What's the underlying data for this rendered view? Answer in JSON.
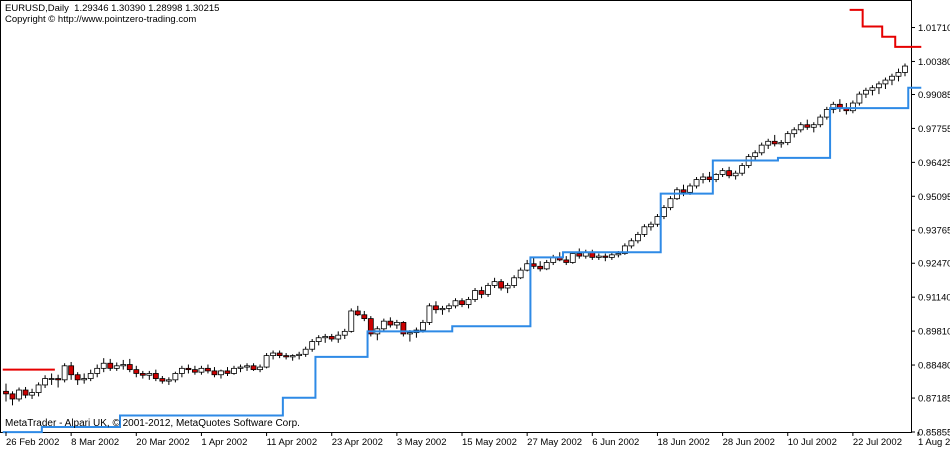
{
  "header": {
    "symbol": "EURUSD,Daily",
    "ohlc": "1.29346 1.30390 1.28998 1.30215",
    "copyright": "Copyright © http://www.pointzero-trading.com"
  },
  "footer": "MetaTrader - Alpari UK, © 2001-2012, MetaQuotes Software Corp.",
  "colors": {
    "bull_body": "#ffffff",
    "bear_body": "#cc0000",
    "candle_outline": "#000000",
    "support_line": "#2e8ae6",
    "resistance_line": "#e60000",
    "axis": "#000000"
  },
  "chart_data": {
    "type": "candlestick",
    "ylim": [
      0.85855,
      1.0275
    ],
    "y_ticks": [
      "1.01710",
      "1.00380",
      "0.99085",
      "0.97755",
      "0.96425",
      "0.95095",
      "0.93765",
      "0.92470",
      "0.91140",
      "0.89810",
      "0.88480",
      "0.87185",
      "0.85855"
    ],
    "x_ticks": [
      {
        "label": "26 Feb 2002",
        "index": 0
      },
      {
        "label": "8 Mar 2002",
        "index": 10
      },
      {
        "label": "20 Mar 2002",
        "index": 20
      },
      {
        "label": "1 Apr 2002",
        "index": 30
      },
      {
        "label": "11 Apr 2002",
        "index": 40
      },
      {
        "label": "23 Apr 2002",
        "index": 50
      },
      {
        "label": "3 May 2002",
        "index": 60
      },
      {
        "label": "15 May 2002",
        "index": 70
      },
      {
        "label": "27 May 2002",
        "index": 80
      },
      {
        "label": "6 Jun 2002",
        "index": 90
      },
      {
        "label": "18 Jun 2002",
        "index": 100
      },
      {
        "label": "28 Jun 2002",
        "index": 110
      },
      {
        "label": "10 Jul 2002",
        "index": 120
      },
      {
        "label": "22 Jul 2002",
        "index": 130
      },
      {
        "label": "1 Aug 2002",
        "index": 140
      }
    ],
    "candles": [
      [
        0.8745,
        0.8775,
        0.8705,
        0.8735
      ],
      [
        0.8735,
        0.8745,
        0.869,
        0.8715
      ],
      [
        0.8715,
        0.876,
        0.8705,
        0.875
      ],
      [
        0.875,
        0.8762,
        0.8718,
        0.873
      ],
      [
        0.873,
        0.8755,
        0.8715,
        0.874
      ],
      [
        0.874,
        0.878,
        0.8725,
        0.877
      ],
      [
        0.877,
        0.8808,
        0.8758,
        0.8795
      ],
      [
        0.8795,
        0.8815,
        0.877,
        0.8795
      ],
      [
        0.8795,
        0.881,
        0.876,
        0.879
      ],
      [
        0.879,
        0.8855,
        0.878,
        0.8845
      ],
      [
        0.8845,
        0.886,
        0.879,
        0.881
      ],
      [
        0.881,
        0.882,
        0.877,
        0.879
      ],
      [
        0.879,
        0.8815,
        0.8775,
        0.8795
      ],
      [
        0.8795,
        0.883,
        0.8785,
        0.8815
      ],
      [
        0.8815,
        0.885,
        0.88,
        0.8835
      ],
      [
        0.8835,
        0.8875,
        0.882,
        0.8855
      ],
      [
        0.8855,
        0.8872,
        0.8825,
        0.8835
      ],
      [
        0.8835,
        0.8858,
        0.8825,
        0.8845
      ],
      [
        0.8845,
        0.8868,
        0.883,
        0.885
      ],
      [
        0.885,
        0.8872,
        0.882,
        0.883
      ],
      [
        0.883,
        0.8845,
        0.88,
        0.8815
      ],
      [
        0.8815,
        0.8825,
        0.8795,
        0.8808
      ],
      [
        0.8808,
        0.8825,
        0.879,
        0.8815
      ],
      [
        0.8815,
        0.883,
        0.8785,
        0.8795
      ],
      [
        0.8795,
        0.8805,
        0.8775,
        0.8785
      ],
      [
        0.8785,
        0.88,
        0.877,
        0.879
      ],
      [
        0.879,
        0.8822,
        0.878,
        0.8815
      ],
      [
        0.8815,
        0.8845,
        0.88,
        0.8835
      ],
      [
        0.8835,
        0.885,
        0.8815,
        0.883
      ],
      [
        0.883,
        0.8845,
        0.881,
        0.882
      ],
      [
        0.882,
        0.8845,
        0.881,
        0.8835
      ],
      [
        0.8835,
        0.885,
        0.8815,
        0.8825
      ],
      [
        0.8825,
        0.884,
        0.88,
        0.881
      ],
      [
        0.881,
        0.883,
        0.8795,
        0.8825
      ],
      [
        0.8825,
        0.884,
        0.8805,
        0.8815
      ],
      [
        0.8815,
        0.8845,
        0.881,
        0.8835
      ],
      [
        0.8835,
        0.885,
        0.882,
        0.884
      ],
      [
        0.884,
        0.8855,
        0.8825,
        0.8845
      ],
      [
        0.8845,
        0.8855,
        0.8825,
        0.883
      ],
      [
        0.883,
        0.885,
        0.882,
        0.884
      ],
      [
        0.884,
        0.8895,
        0.8835,
        0.8885
      ],
      [
        0.8885,
        0.8905,
        0.887,
        0.8895
      ],
      [
        0.8895,
        0.8905,
        0.8875,
        0.8885
      ],
      [
        0.8885,
        0.8895,
        0.887,
        0.888
      ],
      [
        0.888,
        0.889,
        0.8865,
        0.8885
      ],
      [
        0.8885,
        0.89,
        0.887,
        0.889
      ],
      [
        0.889,
        0.892,
        0.888,
        0.891
      ],
      [
        0.891,
        0.895,
        0.89,
        0.894
      ],
      [
        0.894,
        0.8965,
        0.8925,
        0.8955
      ],
      [
        0.8955,
        0.897,
        0.8935,
        0.896
      ],
      [
        0.896,
        0.897,
        0.894,
        0.895
      ],
      [
        0.895,
        0.898,
        0.8935,
        0.8965
      ],
      [
        0.8965,
        0.899,
        0.895,
        0.898
      ],
      [
        0.898,
        0.907,
        0.8975,
        0.906
      ],
      [
        0.906,
        0.908,
        0.904,
        0.9045
      ],
      [
        0.9045,
        0.906,
        0.902,
        0.903
      ],
      [
        0.903,
        0.904,
        0.896,
        0.897
      ],
      [
        0.897,
        0.9,
        0.8945,
        0.899
      ],
      [
        0.899,
        0.903,
        0.898,
        0.902
      ],
      [
        0.902,
        0.9035,
        0.8995,
        0.9005
      ],
      [
        0.9005,
        0.9025,
        0.899,
        0.9015
      ],
      [
        0.9015,
        0.902,
        0.896,
        0.897
      ],
      [
        0.897,
        0.8985,
        0.894,
        0.8975
      ],
      [
        0.8975,
        0.8995,
        0.8955,
        0.8985
      ],
      [
        0.8985,
        0.9025,
        0.8975,
        0.9015
      ],
      [
        0.9015,
        0.909,
        0.9005,
        0.908
      ],
      [
        0.908,
        0.9098,
        0.905,
        0.9065
      ],
      [
        0.9065,
        0.908,
        0.9045,
        0.907
      ],
      [
        0.907,
        0.909,
        0.9055,
        0.908
      ],
      [
        0.908,
        0.911,
        0.907,
        0.91
      ],
      [
        0.91,
        0.911,
        0.9075,
        0.9085
      ],
      [
        0.9085,
        0.9115,
        0.907,
        0.9105
      ],
      [
        0.9105,
        0.915,
        0.9095,
        0.914
      ],
      [
        0.914,
        0.9155,
        0.911,
        0.9125
      ],
      [
        0.9125,
        0.917,
        0.9115,
        0.916
      ],
      [
        0.916,
        0.919,
        0.915,
        0.9175
      ],
      [
        0.9175,
        0.9185,
        0.914,
        0.915
      ],
      [
        0.915,
        0.917,
        0.913,
        0.916
      ],
      [
        0.916,
        0.92,
        0.915,
        0.919
      ],
      [
        0.919,
        0.923,
        0.9185,
        0.922
      ],
      [
        0.922,
        0.926,
        0.9215,
        0.9245
      ],
      [
        0.9245,
        0.9268,
        0.9225,
        0.9235
      ],
      [
        0.9235,
        0.9255,
        0.9215,
        0.9225
      ],
      [
        0.9225,
        0.926,
        0.922,
        0.925
      ],
      [
        0.925,
        0.928,
        0.924,
        0.927
      ],
      [
        0.927,
        0.929,
        0.9255,
        0.926
      ],
      [
        0.926,
        0.9275,
        0.924,
        0.925
      ],
      [
        0.925,
        0.929,
        0.9245,
        0.9285
      ],
      [
        0.9285,
        0.9305,
        0.9265,
        0.9275
      ],
      [
        0.9275,
        0.93,
        0.9265,
        0.929
      ],
      [
        0.929,
        0.93,
        0.926,
        0.927
      ],
      [
        0.927,
        0.9285,
        0.926,
        0.9275
      ],
      [
        0.9275,
        0.9285,
        0.9255,
        0.927
      ],
      [
        0.927,
        0.929,
        0.926,
        0.928
      ],
      [
        0.928,
        0.9295,
        0.927,
        0.9285
      ],
      [
        0.9285,
        0.9325,
        0.928,
        0.9315
      ],
      [
        0.9315,
        0.9345,
        0.9305,
        0.9335
      ],
      [
        0.9335,
        0.937,
        0.9325,
        0.936
      ],
      [
        0.936,
        0.94,
        0.935,
        0.939
      ],
      [
        0.939,
        0.941,
        0.9375,
        0.94
      ],
      [
        0.94,
        0.944,
        0.939,
        0.943
      ],
      [
        0.943,
        0.9475,
        0.942,
        0.9465
      ],
      [
        0.9465,
        0.951,
        0.9455,
        0.95
      ],
      [
        0.95,
        0.9545,
        0.9495,
        0.9535
      ],
      [
        0.9535,
        0.9555,
        0.951,
        0.9525
      ],
      [
        0.9525,
        0.956,
        0.9515,
        0.955
      ],
      [
        0.955,
        0.9585,
        0.954,
        0.9575
      ],
      [
        0.9575,
        0.96,
        0.956,
        0.9585
      ],
      [
        0.9585,
        0.9605,
        0.9565,
        0.9575
      ],
      [
        0.9575,
        0.96,
        0.9565,
        0.9595
      ],
      [
        0.9595,
        0.962,
        0.9585,
        0.961
      ],
      [
        0.961,
        0.9625,
        0.958,
        0.959
      ],
      [
        0.959,
        0.961,
        0.9575,
        0.96
      ],
      [
        0.96,
        0.964,
        0.959,
        0.963
      ],
      [
        0.963,
        0.9675,
        0.962,
        0.9665
      ],
      [
        0.9665,
        0.969,
        0.965,
        0.968
      ],
      [
        0.968,
        0.972,
        0.967,
        0.971
      ],
      [
        0.971,
        0.9735,
        0.9695,
        0.9725
      ],
      [
        0.9725,
        0.975,
        0.9705,
        0.9715
      ],
      [
        0.9715,
        0.973,
        0.97,
        0.972
      ],
      [
        0.972,
        0.9765,
        0.971,
        0.9755
      ],
      [
        0.9755,
        0.978,
        0.974,
        0.977
      ],
      [
        0.977,
        0.98,
        0.976,
        0.979
      ],
      [
        0.979,
        0.981,
        0.977,
        0.978
      ],
      [
        0.978,
        0.98,
        0.976,
        0.979
      ],
      [
        0.979,
        0.983,
        0.978,
        0.982
      ],
      [
        0.982,
        0.986,
        0.981,
        0.985
      ],
      [
        0.985,
        0.988,
        0.9835,
        0.987
      ],
      [
        0.987,
        0.989,
        0.984,
        0.9855
      ],
      [
        0.9855,
        0.9875,
        0.983,
        0.9845
      ],
      [
        0.9845,
        0.9885,
        0.9835,
        0.9875
      ],
      [
        0.9875,
        0.992,
        0.9865,
        0.991
      ],
      [
        0.991,
        0.9935,
        0.9895,
        0.9925
      ],
      [
        0.9925,
        0.9945,
        0.9905,
        0.9935
      ],
      [
        0.9935,
        0.996,
        0.991,
        0.995
      ],
      [
        0.995,
        0.9975,
        0.993,
        0.9965
      ],
      [
        0.9965,
        0.999,
        0.9945,
        0.998
      ],
      [
        0.998,
        1.001,
        0.996,
        0.9995
      ],
      [
        0.9995,
        1.003,
        0.998,
        1.002
      ]
    ],
    "support": [
      {
        "from": 0,
        "to": 5,
        "value": 0.8585
      },
      {
        "from": 6,
        "to": 17,
        "value": 0.8605
      },
      {
        "from": 18,
        "to": 42,
        "value": 0.865
      },
      {
        "from": 43,
        "to": 47,
        "value": 0.872
      },
      {
        "from": 48,
        "to": 55,
        "value": 0.888
      },
      {
        "from": 56,
        "to": 68,
        "value": 0.898
      },
      {
        "from": 69,
        "to": 80,
        "value": 0.9
      },
      {
        "from": 81,
        "to": 85,
        "value": 0.927
      },
      {
        "from": 86,
        "to": 100,
        "value": 0.929
      },
      {
        "from": 101,
        "to": 108,
        "value": 0.952
      },
      {
        "from": 109,
        "to": 118,
        "value": 0.965
      },
      {
        "from": 119,
        "to": 126,
        "value": 0.966
      },
      {
        "from": 127,
        "to": 138,
        "value": 0.9855
      },
      {
        "from": 139,
        "to": 140,
        "value": 0.9935
      }
    ],
    "resistance": [
      {
        "from": 0,
        "to": 7,
        "value": 0.883
      },
      {
        "from": 130,
        "to": 131,
        "value": 1.024
      },
      {
        "from": 132,
        "to": 134,
        "value": 1.0175
      },
      {
        "from": 135,
        "to": 136,
        "value": 1.0135
      },
      {
        "from": 137,
        "to": 140,
        "value": 1.0095
      }
    ]
  }
}
